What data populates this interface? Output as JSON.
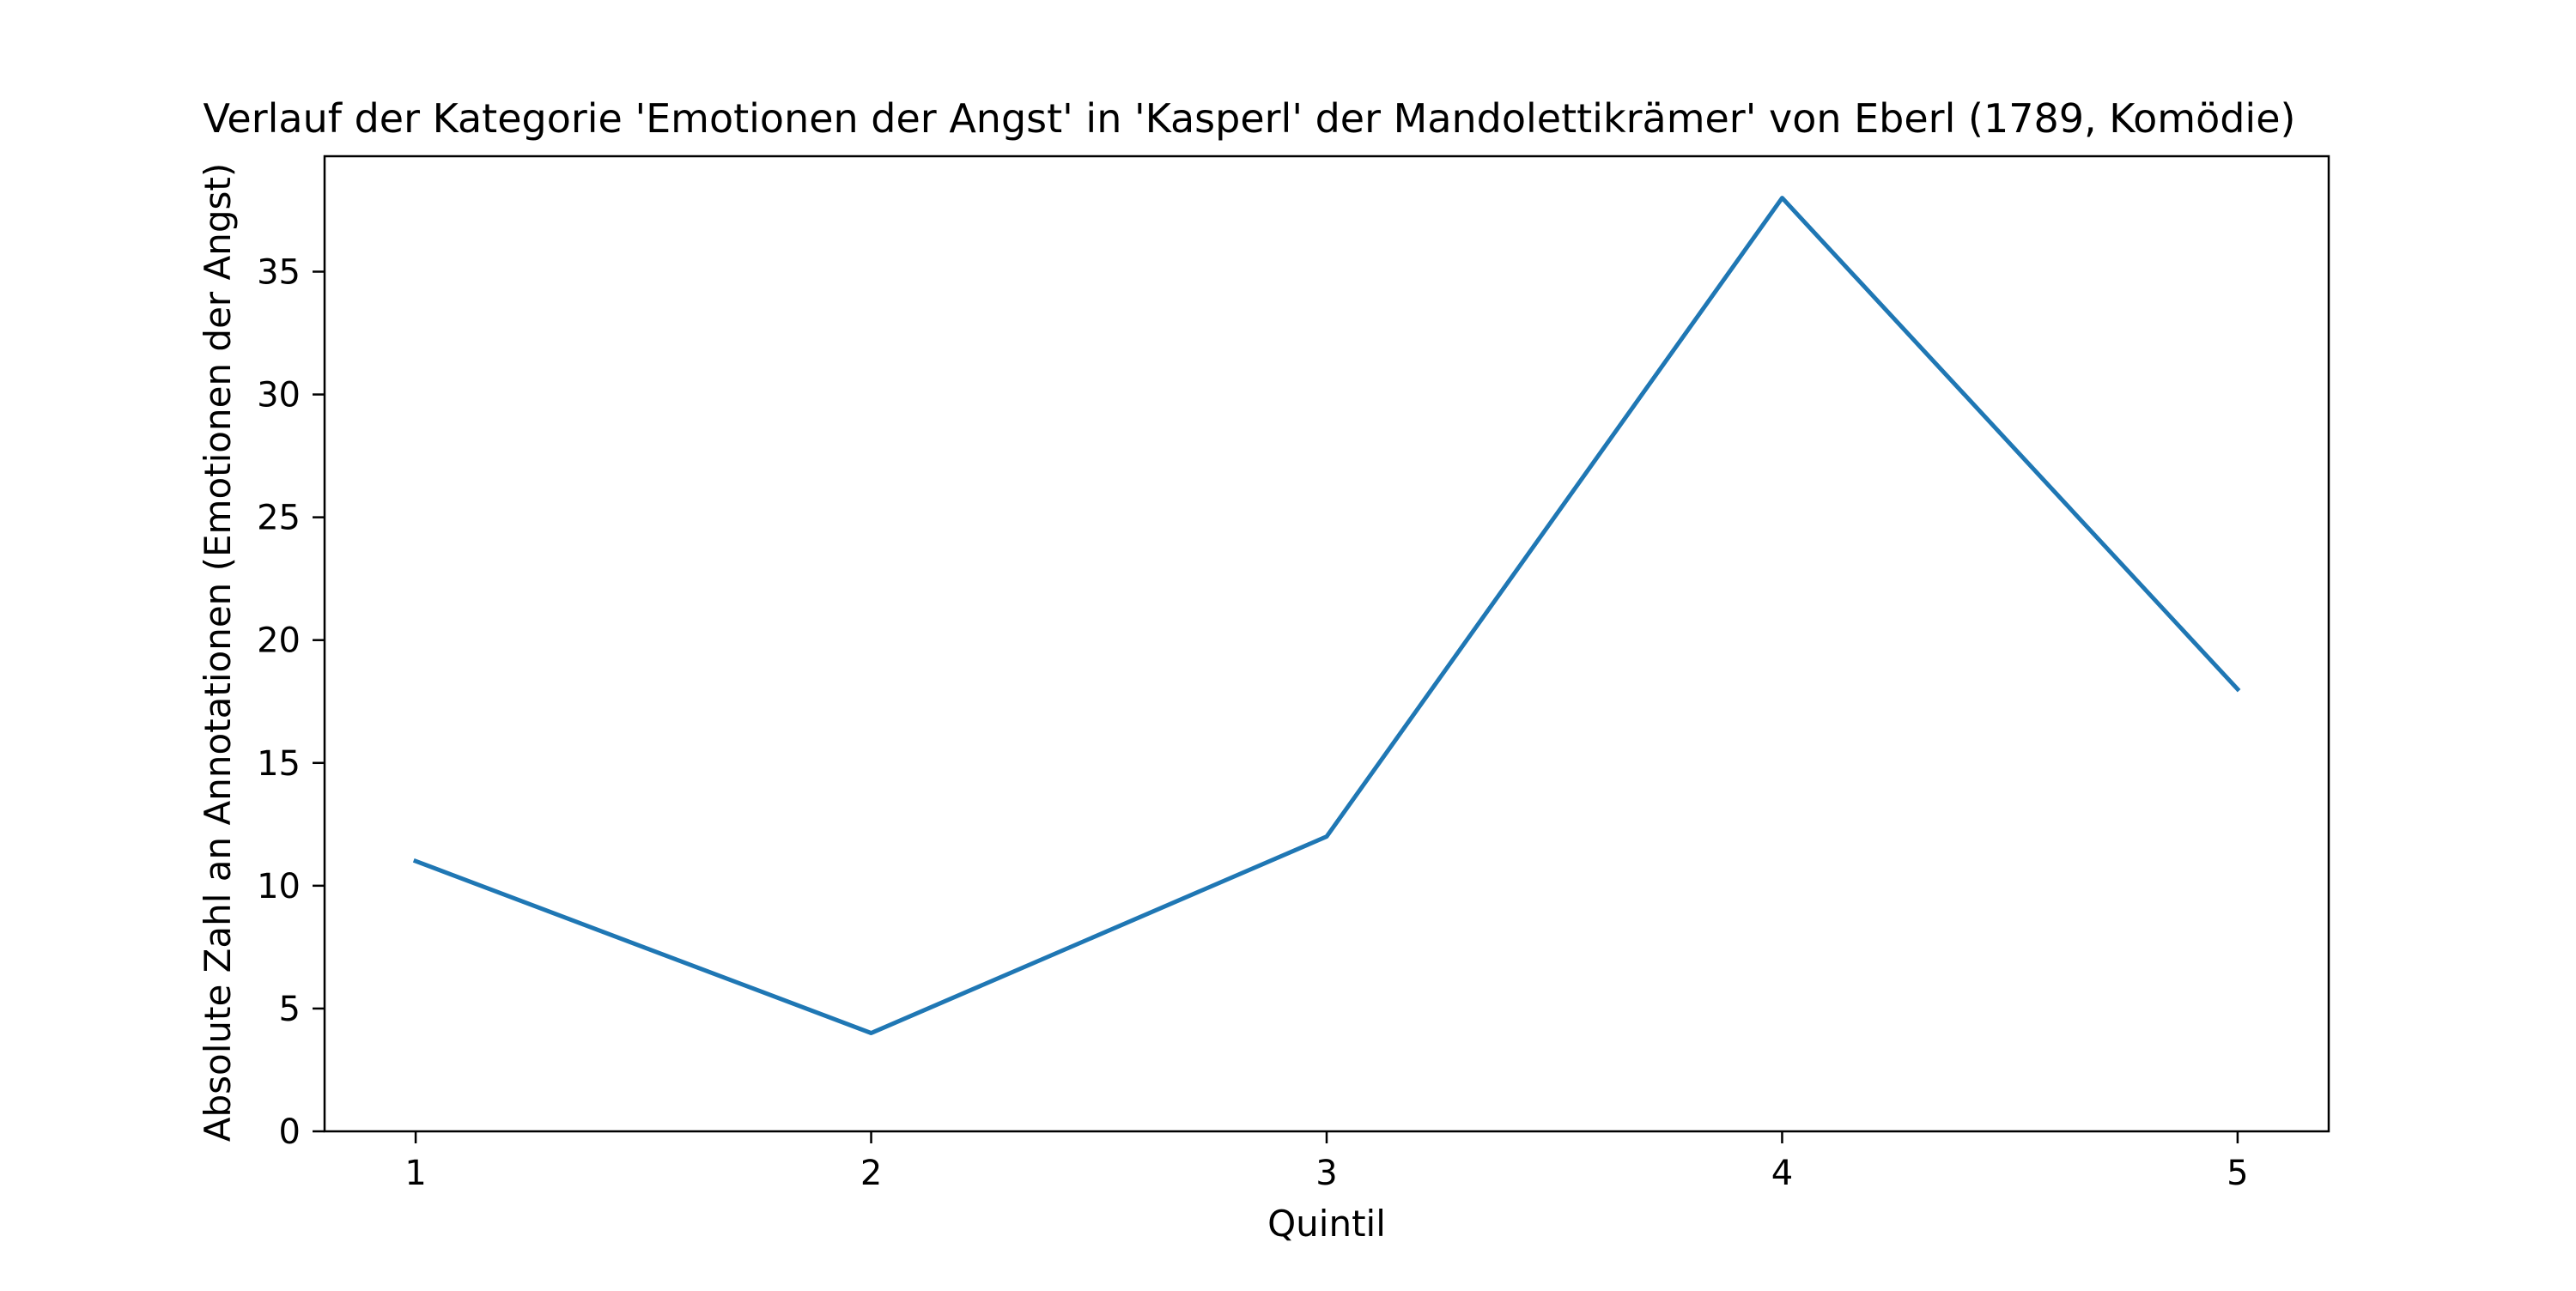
{
  "chart_data": {
    "type": "line",
    "title": "Verlauf der Kategorie 'Emotionen der Angst' in 'Kasperl' der Mandolettikrämer' von Eberl (1789, Komödie)",
    "xlabel": "Quintil",
    "ylabel": "Absolute Zahl an Annotationen (Emotionen der Angst)",
    "x": [
      1,
      2,
      3,
      4,
      5
    ],
    "series": [
      {
        "values": [
          11,
          4,
          12,
          38,
          18
        ]
      }
    ],
    "xlim": [
      0.8,
      5.2
    ],
    "ylim": [
      0,
      39.7
    ],
    "xticks": [
      1,
      2,
      3,
      4,
      5
    ],
    "yticks": [
      0,
      5,
      10,
      15,
      20,
      25,
      30,
      35
    ],
    "grid": false,
    "legend": "none",
    "colors": {
      "series": "#1f77b4",
      "axes": "#000000",
      "background": "#ffffff"
    }
  }
}
